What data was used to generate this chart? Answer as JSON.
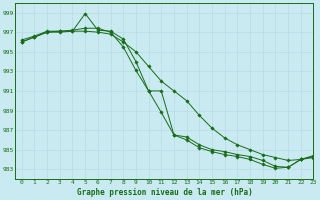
{
  "title": "Graphe pression niveau de la mer (hPa)",
  "bg_color": "#c8eaf0",
  "grid_color": "#b8dce4",
  "line_color": "#1a6b1a",
  "xlim": [
    -0.5,
    23
  ],
  "ylim": [
    982,
    1000
  ],
  "yticks": [
    983,
    985,
    987,
    989,
    991,
    993,
    995,
    997,
    999
  ],
  "xticks": [
    0,
    1,
    2,
    3,
    4,
    5,
    6,
    7,
    8,
    9,
    10,
    11,
    12,
    13,
    14,
    15,
    16,
    17,
    18,
    19,
    20,
    21,
    22,
    23
  ],
  "series": [
    {
      "x": [
        0,
        1,
        2,
        3,
        4,
        5,
        6,
        7,
        8,
        9,
        10,
        11,
        12,
        13,
        14,
        15,
        16,
        17,
        18,
        19,
        20,
        21,
        22,
        23
      ],
      "y": [
        996.0,
        996.5,
        997.0,
        997.0,
        997.1,
        997.1,
        997.0,
        996.8,
        996.0,
        995.0,
        993.5,
        992.0,
        991.0,
        990.0,
        988.5,
        987.2,
        986.2,
        985.5,
        985.0,
        984.5,
        984.2,
        983.9,
        984.0,
        984.2
      ]
    },
    {
      "x": [
        0,
        1,
        2,
        3,
        4,
        5,
        6,
        7,
        8,
        9,
        10,
        11,
        12,
        13,
        14,
        15,
        16,
        17,
        18,
        19,
        20,
        21,
        22,
        23
      ],
      "y": [
        996.2,
        996.6,
        997.1,
        997.1,
        997.1,
        998.9,
        997.2,
        997.1,
        996.3,
        994.0,
        991.0,
        991.0,
        986.5,
        986.3,
        985.5,
        985.0,
        984.8,
        984.5,
        984.3,
        983.9,
        983.3,
        983.2,
        984.0,
        984.4
      ]
    },
    {
      "x": [
        0,
        1,
        2,
        3,
        4,
        5,
        6,
        7,
        8,
        9,
        10,
        11,
        12,
        13,
        14,
        15,
        16,
        17,
        18,
        19,
        20,
        21,
        22,
        23
      ],
      "y": [
        996.0,
        996.5,
        997.0,
        997.1,
        997.2,
        997.4,
        997.4,
        997.0,
        995.5,
        993.1,
        991.0,
        988.8,
        986.5,
        986.0,
        985.2,
        984.8,
        984.5,
        984.3,
        984.0,
        983.5,
        983.1,
        983.2,
        984.0,
        984.3
      ]
    }
  ]
}
